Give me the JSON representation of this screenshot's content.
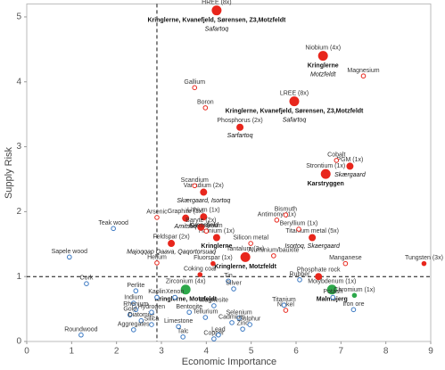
{
  "chart_data": {
    "type": "scatter",
    "x_label": "Economic Importance",
    "y_label": "Supply Risk",
    "xlim": [
      0,
      9
    ],
    "ylim": [
      0,
      5.2
    ],
    "xticks": [
      0,
      1,
      2,
      3,
      4,
      5,
      6,
      7,
      8,
      9
    ],
    "yticks": [
      0,
      1,
      2,
      3,
      4,
      5
    ],
    "threshold_x": 2.9,
    "threshold_y": 1,
    "styles": {
      "red": "#e8261c",
      "blue": "#3a78c2",
      "green": "#2ca84a"
    },
    "points": [
      {
        "label": "HREE (8x)",
        "x": 4.23,
        "y": 5.1,
        "color": "red",
        "filled": true,
        "size": "large",
        "bold": "Kringlerne, Kvanefjeld, Sørensen, Z3,Motzfeldt",
        "italic": "Safartoq"
      },
      {
        "label": "Niobium (4x)",
        "x": 6.6,
        "y": 4.4,
        "color": "red",
        "filled": true,
        "size": "large",
        "bold": "Kringlerne",
        "italic": "Motzfeldt"
      },
      {
        "label": "LREE (8x)",
        "x": 5.96,
        "y": 3.7,
        "color": "red",
        "filled": true,
        "size": "large",
        "bold": "Kringlerne, Kvanefjeld, Sørensen, Z3,Motzfeldt",
        "italic": "Safartoq"
      },
      {
        "label": "Phosphorus (2x)",
        "x": 4.75,
        "y": 3.3,
        "color": "red",
        "filled": true,
        "size": "medium",
        "italic": "Sarfartoq"
      },
      {
        "label": "Strontium (1x)",
        "x": 6.66,
        "y": 2.58,
        "color": "red",
        "filled": true,
        "size": "large",
        "bold": "Karstryggen"
      },
      {
        "label": "PGM (1x)",
        "x": 7.2,
        "y": 2.7,
        "color": "red",
        "filled": true,
        "size": "medium",
        "italic": "Skærgaard"
      },
      {
        "label": "Vanadium (2x)",
        "x": 3.94,
        "y": 2.3,
        "color": "red",
        "filled": true,
        "size": "medium",
        "italic": "Skærgaard, Isortoq"
      },
      {
        "label": "Graphite (3x)",
        "x": 3.54,
        "y": 1.9,
        "color": "red",
        "filled": true,
        "size": "medium",
        "italic": "Amitsoq"
      },
      {
        "label": "Lithium (1x)",
        "x": 3.94,
        "y": 1.92,
        "color": "red",
        "filled": true,
        "size": "medium",
        "italic": "Kvanefjeld"
      },
      {
        "label": "Hafnium (1x)",
        "x": 4.23,
        "y": 1.6,
        "color": "red",
        "filled": true,
        "size": "medium",
        "bold": "Kringlerne"
      },
      {
        "label": "Feldspar (2x)",
        "x": 3.22,
        "y": 1.51,
        "color": "red",
        "filled": true,
        "size": "medium",
        "italic": "Majoqqap Qaava, Qaqortorsuaq"
      },
      {
        "label": "Baryte (2x)",
        "x": 3.88,
        "y": 1.76,
        "color": "red",
        "filled": true,
        "size": "medium"
      },
      {
        "label": "Titanium metal (5x)",
        "x": 6.36,
        "y": 1.6,
        "color": "red",
        "filled": true,
        "size": "medium",
        "italic": "Isortoq, Skaergaard"
      },
      {
        "label": "Tantalum (3x)",
        "x": 4.87,
        "y": 1.3,
        "color": "red",
        "filled": true,
        "size": "large",
        "bold": "Kringlerne, Motzfeldt"
      },
      {
        "label": "Zirconium (4x)",
        "x": 3.54,
        "y": 0.8,
        "color": "green",
        "filled": true,
        "size": "large",
        "bold": "Kringlerne, Motzfeldt"
      },
      {
        "label": "Molybdenum (1x)",
        "x": 6.8,
        "y": 0.8,
        "color": "green",
        "filled": true,
        "size": "large",
        "bold": "Malmbjerg"
      },
      {
        "label": "Chromium (1x)",
        "x": 7.3,
        "y": 0.71,
        "color": "green",
        "filled": true,
        "size": "small"
      },
      {
        "label": "Phosphate rock",
        "x": 6.5,
        "y": 1.0,
        "color": "red",
        "filled": true,
        "size": "medium"
      },
      {
        "label": "Tungsten (3x)",
        "x": 8.85,
        "y": 1.2,
        "color": "red",
        "filled": true,
        "size": "small"
      },
      {
        "label": "Fluorspar (1x)",
        "x": 4.15,
        "y": 1.2,
        "color": "red",
        "filled": true,
        "size": "small"
      },
      {
        "label": "Coking coal",
        "x": 3.86,
        "y": 1.03,
        "color": "red",
        "filled": true,
        "size": "small"
      },
      {
        "label": "Gallium",
        "x": 3.74,
        "y": 3.91,
        "color": "red",
        "filled": false,
        "size": "small"
      },
      {
        "label": "Boron",
        "x": 3.98,
        "y": 3.6,
        "color": "red",
        "filled": false,
        "size": "small"
      },
      {
        "label": "Magnesium",
        "x": 7.5,
        "y": 4.09,
        "color": "red",
        "filled": false,
        "size": "small"
      },
      {
        "label": "Cobalt",
        "x": 6.9,
        "y": 2.79,
        "color": "red",
        "filled": false,
        "size": "small"
      },
      {
        "label": "Scandium",
        "x": 3.74,
        "y": 2.4,
        "color": "red",
        "filled": false,
        "size": "small"
      },
      {
        "label": "Arsenic",
        "x": 2.9,
        "y": 1.91,
        "color": "red",
        "filled": false,
        "size": "small"
      },
      {
        "label": "Germanium",
        "x": 4.0,
        "y": 1.7,
        "color": "red",
        "filled": false,
        "size": "small"
      },
      {
        "label": "Antimony (1x)",
        "x": 5.57,
        "y": 1.87,
        "color": "red",
        "filled": false,
        "size": "small"
      },
      {
        "label": "Bismuth",
        "x": 5.77,
        "y": 1.95,
        "color": "red",
        "filled": false,
        "size": "small"
      },
      {
        "label": "Beryllium (1x)",
        "x": 6.06,
        "y": 1.73,
        "color": "red",
        "filled": false,
        "size": "small"
      },
      {
        "label": "Silicon metal",
        "x": 4.99,
        "y": 1.51,
        "color": "red",
        "filled": false,
        "size": "small"
      },
      {
        "label": "Aluminium/bauxite",
        "x": 5.5,
        "y": 1.32,
        "color": "red",
        "filled": false,
        "size": "small"
      },
      {
        "label": "Manganese",
        "x": 7.1,
        "y": 1.2,
        "color": "red",
        "filled": false,
        "size": "small"
      },
      {
        "label": "Helium",
        "x": 2.9,
        "y": 1.21,
        "color": "red",
        "filled": false,
        "size": "small"
      },
      {
        "label": "Nickel",
        "x": 5.77,
        "y": 0.48,
        "color": "red",
        "filled": false,
        "size": "small"
      },
      {
        "label": "Teak wood",
        "x": 1.93,
        "y": 1.74,
        "color": "blue",
        "filled": false,
        "size": "small"
      },
      {
        "label": "Sapele wood",
        "x": 0.95,
        "y": 1.3,
        "color": "blue",
        "filled": false,
        "size": "small"
      },
      {
        "label": "Cork",
        "x": 1.33,
        "y": 0.89,
        "color": "blue",
        "filled": false,
        "size": "small"
      },
      {
        "label": "Perlite",
        "x": 2.43,
        "y": 0.78,
        "color": "blue",
        "filled": false,
        "size": "small"
      },
      {
        "label": "Kaolin",
        "x": 2.9,
        "y": 0.68,
        "color": "blue",
        "filled": false,
        "size": "small"
      },
      {
        "label": "Xenon",
        "x": 3.3,
        "y": 0.68,
        "color": "blue",
        "filled": false,
        "size": "small"
      },
      {
        "label": "Indium",
        "x": 2.38,
        "y": 0.59,
        "color": "blue",
        "filled": false,
        "size": "small"
      },
      {
        "label": "Rhenium",
        "x": 2.43,
        "y": 0.49,
        "color": "blue",
        "filled": false,
        "size": "small"
      },
      {
        "label": "Gold",
        "x": 2.3,
        "y": 0.41,
        "color": "blue",
        "filled": false,
        "size": "small"
      },
      {
        "label": "Diatomite",
        "x": 2.55,
        "y": 0.32,
        "color": "blue",
        "filled": false,
        "size": "small"
      },
      {
        "label": "Roundwood",
        "x": 1.21,
        "y": 0.1,
        "color": "blue",
        "filled": false,
        "size": "small"
      },
      {
        "label": "Hydrogen",
        "x": 2.78,
        "y": 0.45,
        "color": "blue",
        "filled": false,
        "size": "small"
      },
      {
        "label": "Bentonite",
        "x": 3.62,
        "y": 0.45,
        "color": "blue",
        "filled": false,
        "size": "small"
      },
      {
        "label": "Aggregates",
        "x": 2.38,
        "y": 0.18,
        "color": "blue",
        "filled": false,
        "size": "small"
      },
      {
        "label": "Talc",
        "x": 3.48,
        "y": 0.07,
        "color": "blue",
        "filled": false,
        "size": "small"
      },
      {
        "label": "Copper",
        "x": 4.17,
        "y": 0.04,
        "color": "blue",
        "filled": false,
        "size": "small"
      },
      {
        "label": "Lead",
        "x": 4.27,
        "y": 0.1,
        "color": "blue",
        "filled": false,
        "size": "small"
      },
      {
        "label": "Zinc",
        "x": 4.81,
        "y": 0.19,
        "color": "blue",
        "filled": false,
        "size": "small"
      },
      {
        "label": "Sulphur",
        "x": 4.97,
        "y": 0.26,
        "color": "blue",
        "filled": false,
        "size": "small"
      },
      {
        "label": "Selenium",
        "x": 4.73,
        "y": 0.36,
        "color": "blue",
        "filled": false,
        "size": "small"
      },
      {
        "label": "Tellurium",
        "x": 3.98,
        "y": 0.37,
        "color": "blue",
        "filled": false,
        "size": "small"
      },
      {
        "label": "Cadmium",
        "x": 4.57,
        "y": 0.29,
        "color": "blue",
        "filled": false,
        "size": "small"
      },
      {
        "label": "Limestone",
        "x": 3.38,
        "y": 0.23,
        "color": "blue",
        "filled": false,
        "size": "small"
      },
      {
        "label": "Silica",
        "x": 2.78,
        "y": 0.26,
        "color": "blue",
        "filled": false,
        "size": "small"
      },
      {
        "label": "Magnesite",
        "x": 4.17,
        "y": 0.55,
        "color": "blue",
        "filled": false,
        "size": "small"
      },
      {
        "label": "Tin",
        "x": 4.49,
        "y": 0.93,
        "color": "blue",
        "filled": false,
        "size": "small"
      },
      {
        "label": "Silver",
        "x": 4.61,
        "y": 0.81,
        "color": "blue",
        "filled": false,
        "size": "small"
      },
      {
        "label": "Rubber",
        "x": 6.08,
        "y": 0.95,
        "color": "blue",
        "filled": false,
        "size": "small"
      },
      {
        "label": "Potash",
        "x": 6.82,
        "y": 0.68,
        "color": "blue",
        "filled": false,
        "size": "small"
      },
      {
        "label": "Titanium",
        "x": 5.73,
        "y": 0.56,
        "color": "blue",
        "filled": false,
        "size": "small"
      },
      {
        "label": "Iron ore",
        "x": 7.28,
        "y": 0.49,
        "color": "blue",
        "filled": false,
        "size": "small"
      }
    ]
  }
}
